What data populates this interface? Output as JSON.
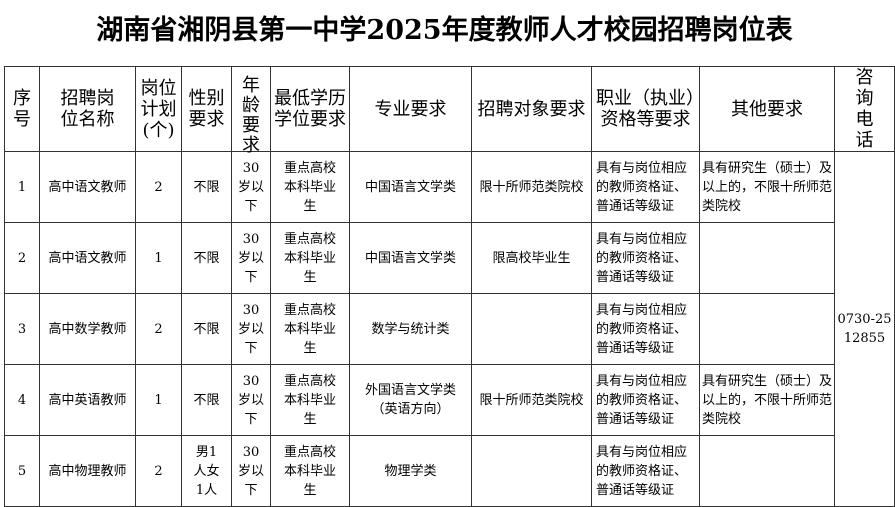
{
  "title": "湖南省湘阴县第一中学2025年度教师人才校园招聘岗位表",
  "headers": [
    "序号",
    "招聘岗位名称",
    "岗位计划(个)",
    "性别要求",
    "年龄要求",
    "最低学历学位要求",
    "专业要求",
    "招聘对象要求",
    "职业（执业）资格等要求",
    "其他要求",
    "咨询电话"
  ],
  "phone": "0730-2512855",
  "rows": [
    {
      "no": "1",
      "post": "高中语文教师",
      "plan": "2",
      "gender": "不限",
      "age": "30岁以下",
      "edu": "重点高校本科毕业生",
      "major": "中国语言文学类",
      "target": "限十所师范类院校",
      "qual": "具有与岗位相应的教师资格证、普通话等级证",
      "other": "具有研究生（硕士）及以上的，不限十所师范类院校"
    },
    {
      "no": "2",
      "post": "高中语文教师",
      "plan": "1",
      "gender": "不限",
      "age": "30岁以下",
      "edu": "重点高校本科毕业生",
      "major": "中国语言文学类",
      "target": "限高校毕业生",
      "qual": "具有与岗位相应的教师资格证、普通话等级证",
      "other": ""
    },
    {
      "no": "3",
      "post": "高中数学教师",
      "plan": "2",
      "gender": "不限",
      "age": "30岁以下",
      "edu": "重点高校本科毕业生",
      "major": "数学与统计类",
      "target": "",
      "qual": "具有与岗位相应的教师资格证、普通话等级证",
      "other": ""
    },
    {
      "no": "4",
      "post": "高中英语教师",
      "plan": "1",
      "gender": "不限",
      "age": "30岁以下",
      "edu": "重点高校本科毕业生",
      "major": "外国语言文学类（英语方向）",
      "target": "限十所师范类院校",
      "qual": "具有与岗位相应的教师资格证、普通话等级证",
      "other": "具有研究生（硕士）及以上的，不限十所师范类院校"
    },
    {
      "no": "5",
      "post": "高中物理教师",
      "plan": "2",
      "gender": "男1人女1人",
      "age": "30岁以下",
      "edu": "重点高校本科毕业生",
      "major": "物理学类",
      "target": "",
      "qual": "具有与岗位相应的教师资格证、普通话等级证",
      "other": ""
    }
  ]
}
